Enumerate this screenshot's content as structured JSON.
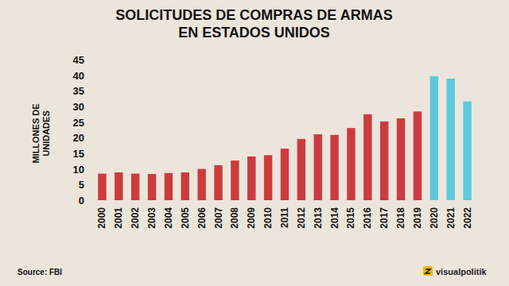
{
  "chart_data": {
    "type": "bar",
    "title": "SOLICITUDES DE COMPRAS DE ARMAS EN ESTADOS UNIDOS",
    "y_label": "MILLONES DE UNIDADES",
    "categories": [
      "2000",
      "2001",
      "2002",
      "2003",
      "2004",
      "2005",
      "2006",
      "2007",
      "2008",
      "2009",
      "2010",
      "2011",
      "2012",
      "2013",
      "2014",
      "2015",
      "2016",
      "2017",
      "2018",
      "2019",
      "2020",
      "2021",
      "2022"
    ],
    "values": [
      8.5,
      8.9,
      8.5,
      8.4,
      8.7,
      8.9,
      10.0,
      11.2,
      12.7,
      14.0,
      14.4,
      16.5,
      19.6,
      21.1,
      20.9,
      23.1,
      27.5,
      25.2,
      26.2,
      28.4,
      39.7,
      38.9,
      31.6
    ],
    "colors": [
      "#cd3b3e",
      "#cd3b3e",
      "#cd3b3e",
      "#cd3b3e",
      "#cd3b3e",
      "#cd3b3e",
      "#cd3b3e",
      "#cd3b3e",
      "#cd3b3e",
      "#cd3b3e",
      "#cd3b3e",
      "#cd3b3e",
      "#cd3b3e",
      "#cd3b3e",
      "#cd3b3e",
      "#cd3b3e",
      "#cd3b3e",
      "#cd3b3e",
      "#cd3b3e",
      "#cd3b3e",
      "#5ec9dd",
      "#5ec9dd",
      "#5ec9dd"
    ],
    "ylim": [
      0,
      45
    ],
    "yticks": [
      0,
      5,
      10,
      15,
      20,
      25,
      30,
      35,
      40,
      45
    ],
    "grid": false,
    "annotations": [
      "Source: FBI",
      "visualpolitik"
    ]
  }
}
